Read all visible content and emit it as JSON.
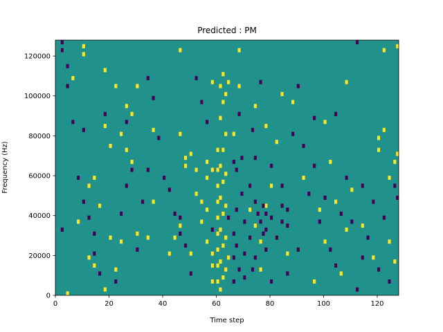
{
  "chart_data": {
    "type": "heatmap",
    "title": "Predicted : PM",
    "xlabel": "Time step",
    "ylabel": "Frequency (Hz)",
    "xlim": [
      0,
      128
    ],
    "ylim": [
      0,
      128000
    ],
    "xticks": [
      0,
      20,
      40,
      60,
      80,
      100,
      120
    ],
    "yticks": [
      0,
      20000,
      40000,
      60000,
      80000,
      100000,
      120000
    ],
    "colormap": [
      "#440154",
      "#21918c",
      "#fde725"
    ],
    "background_value": 0,
    "cell_values": {
      "low": -1,
      "mid": 0,
      "high": 1
    },
    "time_steps": 128,
    "frequency_bin_hz": 2000,
    "cells_high": [
      [
        2,
        122000
      ],
      [
        4,
        0
      ],
      [
        10,
        124000
      ],
      [
        10,
        120000
      ],
      [
        12,
        54000
      ],
      [
        14,
        58000
      ],
      [
        18,
        84000
      ],
      [
        18,
        112000
      ],
      [
        20,
        74000
      ],
      [
        24,
        80000
      ],
      [
        22,
        104000
      ],
      [
        26,
        94000
      ],
      [
        30,
        104000
      ],
      [
        12,
        18000
      ],
      [
        16,
        44000
      ],
      [
        20,
        28000
      ],
      [
        22,
        12000
      ],
      [
        24,
        26000
      ],
      [
        26,
        72000
      ],
      [
        28,
        66000
      ],
      [
        34,
        28000
      ],
      [
        36,
        82000
      ],
      [
        46,
        122000
      ],
      [
        46,
        80000
      ],
      [
        48,
        64000
      ],
      [
        48,
        68000
      ],
      [
        46,
        34000
      ],
      [
        44,
        28000
      ],
      [
        50,
        20000
      ],
      [
        50,
        70000
      ],
      [
        52,
        62000
      ],
      [
        52,
        50000
      ],
      [
        54,
        46000
      ],
      [
        54,
        36000
      ],
      [
        56,
        58000
      ],
      [
        56,
        66000
      ],
      [
        56,
        42000
      ],
      [
        56,
        26000
      ],
      [
        58,
        106000
      ],
      [
        58,
        62000
      ],
      [
        58,
        20000
      ],
      [
        58,
        14000
      ],
      [
        58,
        6000
      ],
      [
        60,
        72000
      ],
      [
        60,
        62000
      ],
      [
        60,
        54000
      ],
      [
        60,
        46000
      ],
      [
        60,
        38000
      ],
      [
        60,
        30000
      ],
      [
        60,
        22000
      ],
      [
        60,
        14000
      ],
      [
        60,
        6000
      ],
      [
        61,
        104000
      ],
      [
        61,
        88000
      ],
      [
        61,
        64000
      ],
      [
        61,
        48000
      ],
      [
        61,
        32000
      ],
      [
        61,
        16000
      ],
      [
        61,
        2000
      ],
      [
        62,
        110000
      ],
      [
        62,
        96000
      ],
      [
        62,
        72000
      ],
      [
        62,
        56000
      ],
      [
        62,
        40000
      ],
      [
        62,
        24000
      ],
      [
        62,
        8000
      ],
      [
        63,
        100000
      ],
      [
        63,
        80000
      ],
      [
        63,
        60000
      ],
      [
        63,
        44000
      ],
      [
        63,
        28000
      ],
      [
        63,
        12000
      ],
      [
        64,
        106000
      ],
      [
        64,
        18000
      ],
      [
        66,
        80000
      ],
      [
        68,
        122000
      ],
      [
        68,
        104000
      ],
      [
        72,
        42000
      ],
      [
        74,
        94000
      ],
      [
        74,
        34000
      ],
      [
        76,
        26000
      ],
      [
        76,
        12000
      ],
      [
        78,
        44000
      ],
      [
        78,
        84000
      ],
      [
        80,
        54000
      ],
      [
        82,
        76000
      ],
      [
        84,
        100000
      ],
      [
        86,
        20000
      ],
      [
        88,
        96000
      ],
      [
        92,
        58000
      ],
      [
        96,
        6000
      ],
      [
        98,
        42000
      ],
      [
        100,
        86000
      ],
      [
        100,
        26000
      ],
      [
        102,
        66000
      ],
      [
        104,
        46000
      ],
      [
        106,
        10000
      ],
      [
        108,
        106000
      ],
      [
        108,
        32000
      ],
      [
        110,
        52000
      ],
      [
        114,
        34000
      ],
      [
        118,
        18000
      ],
      [
        120,
        72000
      ],
      [
        120,
        78000
      ],
      [
        122,
        122000
      ],
      [
        122,
        82000
      ],
      [
        124,
        58000
      ],
      [
        124,
        26000
      ],
      [
        126,
        66000
      ],
      [
        126,
        16000
      ],
      [
        127,
        124000
      ],
      [
        127,
        70000
      ],
      [
        6,
        108000
      ],
      [
        8,
        36000
      ],
      [
        14,
        14000
      ],
      [
        18,
        2000
      ],
      [
        30,
        30000
      ],
      [
        42,
        20000
      ],
      [
        36,
        46000
      ],
      [
        28,
        90000
      ]
    ],
    "cells_low": [
      [
        2,
        126000
      ],
      [
        2,
        122000
      ],
      [
        4,
        114000
      ],
      [
        4,
        104000
      ],
      [
        6,
        86000
      ],
      [
        8,
        58000
      ],
      [
        10,
        46000
      ],
      [
        12,
        38000
      ],
      [
        14,
        30000
      ],
      [
        14,
        20000
      ],
      [
        16,
        10000
      ],
      [
        22,
        6000
      ],
      [
        24,
        40000
      ],
      [
        26,
        54000
      ],
      [
        28,
        62000
      ],
      [
        30,
        22000
      ],
      [
        32,
        46000
      ],
      [
        34,
        62000
      ],
      [
        36,
        98000
      ],
      [
        38,
        78000
      ],
      [
        40,
        58000
      ],
      [
        42,
        52000
      ],
      [
        44,
        40000
      ],
      [
        46,
        30000
      ],
      [
        48,
        24000
      ],
      [
        50,
        10000
      ],
      [
        52,
        108000
      ],
      [
        54,
        96000
      ],
      [
        56,
        86000
      ],
      [
        58,
        32000
      ],
      [
        66,
        66000
      ],
      [
        66,
        30000
      ],
      [
        66,
        18000
      ],
      [
        66,
        6000
      ],
      [
        67,
        62000
      ],
      [
        67,
        42000
      ],
      [
        67,
        24000
      ],
      [
        68,
        90000
      ],
      [
        68,
        12000
      ],
      [
        69,
        68000
      ],
      [
        69,
        50000
      ],
      [
        70,
        36000
      ],
      [
        70,
        20000
      ],
      [
        72,
        54000
      ],
      [
        72,
        28000
      ],
      [
        73,
        82000
      ],
      [
        73,
        12000
      ],
      [
        74,
        68000
      ],
      [
        74,
        46000
      ],
      [
        74,
        18000
      ],
      [
        75,
        40000
      ],
      [
        76,
        106000
      ],
      [
        76,
        36000
      ],
      [
        77,
        44000
      ],
      [
        77,
        30000
      ],
      [
        78,
        40000
      ],
      [
        78,
        22000
      ],
      [
        80,
        64000
      ],
      [
        80,
        38000
      ],
      [
        80,
        6000
      ],
      [
        82,
        28000
      ],
      [
        84,
        54000
      ],
      [
        84,
        44000
      ],
      [
        84,
        36000
      ],
      [
        86,
        42000
      ],
      [
        86,
        34000
      ],
      [
        86,
        10000
      ],
      [
        88,
        80000
      ],
      [
        90,
        104000
      ],
      [
        92,
        74000
      ],
      [
        94,
        50000
      ],
      [
        96,
        64000
      ],
      [
        96,
        88000
      ],
      [
        98,
        36000
      ],
      [
        100,
        48000
      ],
      [
        102,
        22000
      ],
      [
        104,
        14000
      ],
      [
        106,
        40000
      ],
      [
        108,
        58000
      ],
      [
        110,
        36000
      ],
      [
        112,
        2000
      ],
      [
        114,
        54000
      ],
      [
        116,
        28000
      ],
      [
        118,
        46000
      ],
      [
        120,
        12000
      ],
      [
        122,
        38000
      ],
      [
        124,
        6000
      ],
      [
        126,
        54000
      ],
      [
        127,
        48000
      ],
      [
        112,
        126000
      ],
      [
        2,
        32000
      ],
      [
        10,
        82000
      ],
      [
        18,
        90000
      ],
      [
        26,
        86000
      ],
      [
        34,
        108000
      ],
      [
        46,
        38000
      ],
      [
        64,
        38000
      ],
      [
        70,
        8000
      ],
      [
        78,
        32000
      ],
      [
        90,
        22000
      ],
      [
        104,
        90000
      ],
      [
        114,
        18000
      ]
    ]
  }
}
